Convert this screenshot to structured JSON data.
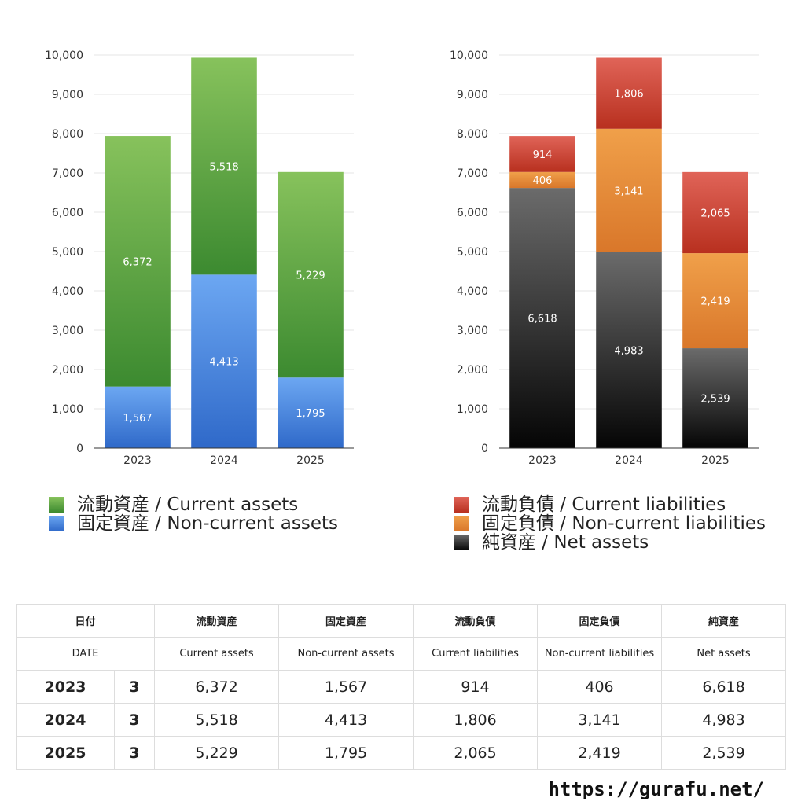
{
  "chart_data": [
    {
      "type": "bar",
      "stacked": true,
      "categories": [
        "2023",
        "2024",
        "2025"
      ],
      "series": [
        {
          "name": "固定資産 / Non-current assets",
          "values": [
            1567,
            4413,
            1795
          ],
          "labels": [
            "1,567",
            "4,413",
            "1,795"
          ],
          "color_top": "#6ca7f2",
          "color_bottom": "#2f69c9"
        },
        {
          "name": "流動資産 / Current assets",
          "values": [
            6372,
            5518,
            5229
          ],
          "labels": [
            "6,372",
            "5,518",
            "5,229"
          ],
          "color_top": "#87c25c",
          "color_bottom": "#3c8a30"
        }
      ],
      "ylim": [
        0,
        10000
      ],
      "yticks": [
        "0",
        "1,000",
        "2,000",
        "3,000",
        "4,000",
        "5,000",
        "6,000",
        "7,000",
        "8,000",
        "9,000",
        "10,000"
      ],
      "grid": true
    },
    {
      "type": "bar",
      "stacked": true,
      "categories": [
        "2023",
        "2024",
        "2025"
      ],
      "series": [
        {
          "name": "純資産 / Net assets",
          "values": [
            6618,
            4983,
            2539
          ],
          "labels": [
            "6,618",
            "4,983",
            "2,539"
          ],
          "color_top": "#6b6b6b",
          "color_bottom": "#050505"
        },
        {
          "name": "固定負債 / Non-current liabilities",
          "values": [
            406,
            3141,
            2419
          ],
          "labels": [
            "406",
            "3,141",
            "2,419"
          ],
          "color_top": "#f0a04a",
          "color_bottom": "#d9772a"
        },
        {
          "name": "流動負債 / Current liabilities",
          "values": [
            914,
            1806,
            2065
          ],
          "labels": [
            "914",
            "1,806",
            "2,065"
          ],
          "color_top": "#e06458",
          "color_bottom": "#b8301f"
        }
      ],
      "ylim": [
        0,
        10000
      ],
      "yticks": [
        "0",
        "1,000",
        "2,000",
        "3,000",
        "4,000",
        "5,000",
        "6,000",
        "7,000",
        "8,000",
        "9,000",
        "10,000"
      ],
      "grid": true
    }
  ],
  "legend_left": [
    {
      "label": "流動資産 / Current assets",
      "color": "#5aa640"
    },
    {
      "label": "固定資産 / Non-current assets",
      "color": "#3f7fdc"
    }
  ],
  "legend_right": [
    {
      "label": "流動負債 / Current liabilities",
      "color": "#d4463a"
    },
    {
      "label": "固定負債 / Non-current liabilities",
      "color": "#e88a38"
    },
    {
      "label": "純資産 / Net assets",
      "color": "#2a2a2a"
    }
  ],
  "table": {
    "headers_jp": [
      "日付",
      "流動資産",
      "固定資産",
      "流動負債",
      "固定負債",
      "純資産"
    ],
    "headers_en": [
      "DATE",
      "Current assets",
      "Non-current assets",
      "Current liabilities",
      "Non-current liabilities",
      "Net assets"
    ],
    "rows": [
      {
        "year": "2023",
        "month": "3",
        "cells": [
          "6,372",
          "1,567",
          "914",
          "406",
          "6,618"
        ]
      },
      {
        "year": "2024",
        "month": "3",
        "cells": [
          "5,518",
          "4,413",
          "1,806",
          "3,141",
          "4,983"
        ]
      },
      {
        "year": "2025",
        "month": "3",
        "cells": [
          "5,229",
          "1,795",
          "2,065",
          "2,419",
          "2,539"
        ]
      }
    ]
  },
  "footer_url": "https://gurafu.net/"
}
